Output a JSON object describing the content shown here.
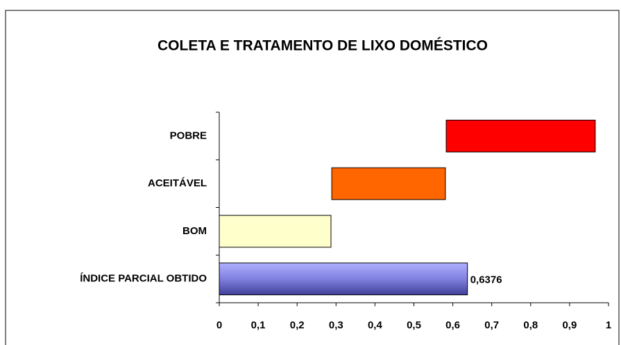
{
  "chart_data": {
    "type": "range-bar",
    "title": "COLETA E TRATAMENTO DE LIXO DOMÉSTICO",
    "categories": [
      "POBRE",
      "ACEITÁVEL",
      "BOM",
      "ÍNDICE PARCIAL OBTIDO"
    ],
    "ranges": [
      [
        0.583,
        0.966
      ],
      [
        0.289,
        0.581
      ],
      [
        0,
        0.287
      ],
      [
        0,
        0.6376
      ]
    ],
    "colors": [
      "#ff0000",
      "#ff6600",
      "#ffffcc",
      "#8080e0"
    ],
    "value_labels": [
      null,
      null,
      null,
      "0,6376"
    ],
    "xlim": [
      0,
      1
    ],
    "xticks": [
      0,
      {
        "value": 0.1,
        "label": "0,1"
      },
      {
        "value": 0.2,
        "label": "0,2"
      },
      {
        "value": 0.3,
        "label": "0,3"
      },
      {
        "value": 0.4,
        "label": "0,4"
      },
      {
        "value": 0.5,
        "label": "0,5"
      },
      {
        "value": 0.6,
        "label": "0,6"
      },
      {
        "value": 0.7,
        "label": "0,7"
      },
      {
        "value": 0.8,
        "label": "0,8"
      },
      {
        "value": 0.9,
        "label": "0,9"
      },
      1
    ],
    "grid": false
  }
}
